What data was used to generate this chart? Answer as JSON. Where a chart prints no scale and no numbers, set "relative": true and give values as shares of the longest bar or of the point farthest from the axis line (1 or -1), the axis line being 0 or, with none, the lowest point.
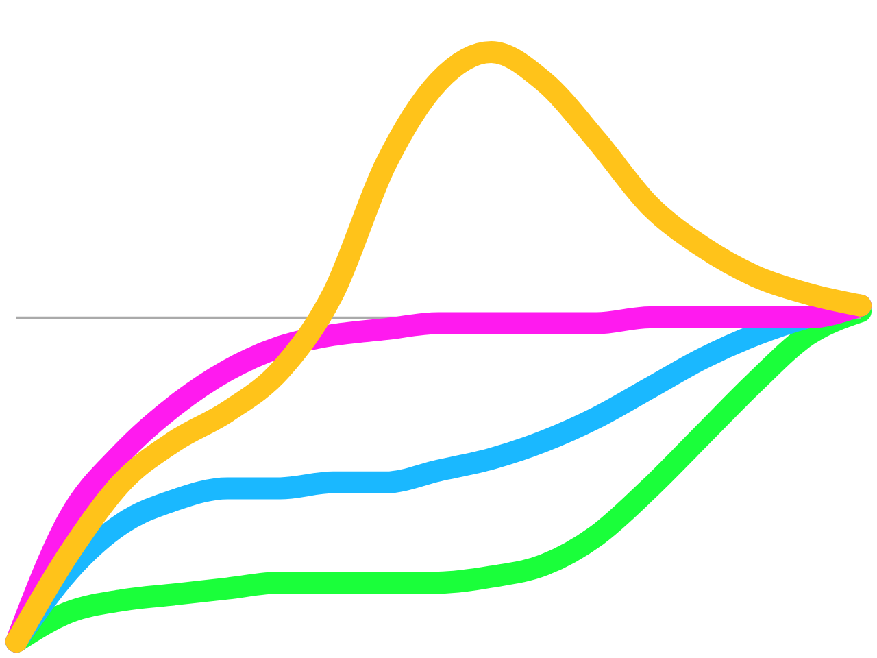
{
  "chart_data": {
    "type": "line",
    "relative": true,
    "grid": false,
    "categories": [
      null,
      null,
      null,
      null,
      null,
      null,
      null,
      null,
      null,
      null,
      null,
      null,
      null,
      null,
      null,
      null,
      null
    ],
    "series": [
      {
        "color": "#1aff3a",
        "values": [
          0,
          0.05,
          0.07,
          0.08,
          0.09,
          0.1,
          0.1,
          0.1,
          0.1,
          0.11,
          0.13,
          0.18,
          0.26,
          0.35,
          0.44,
          0.52,
          0.56
        ]
      },
      {
        "color": "#1ab8ff",
        "values": [
          0,
          0.12,
          0.2,
          0.24,
          0.26,
          0.26,
          0.27,
          0.27,
          0.29,
          0.31,
          0.34,
          0.38,
          0.43,
          0.48,
          0.52,
          0.55,
          0.57
        ]
      },
      {
        "color": "#ff1aef",
        "values": [
          0,
          0.21,
          0.32,
          0.4,
          0.46,
          0.5,
          0.52,
          0.53,
          0.54,
          0.54,
          0.54,
          0.54,
          0.55,
          0.55,
          0.55,
          0.55,
          0.57
        ]
      },
      {
        "color": "#ffc31a",
        "values": [
          0,
          0.15,
          0.27,
          0.34,
          0.39,
          0.46,
          0.59,
          0.81,
          0.95,
          1.0,
          0.95,
          0.85,
          0.74,
          0.67,
          0.62,
          0.59,
          0.57
        ]
      }
    ],
    "ref_lines": [
      {
        "axis": "y",
        "value": 0.549,
        "color": "#aaaaaa"
      }
    ]
  }
}
